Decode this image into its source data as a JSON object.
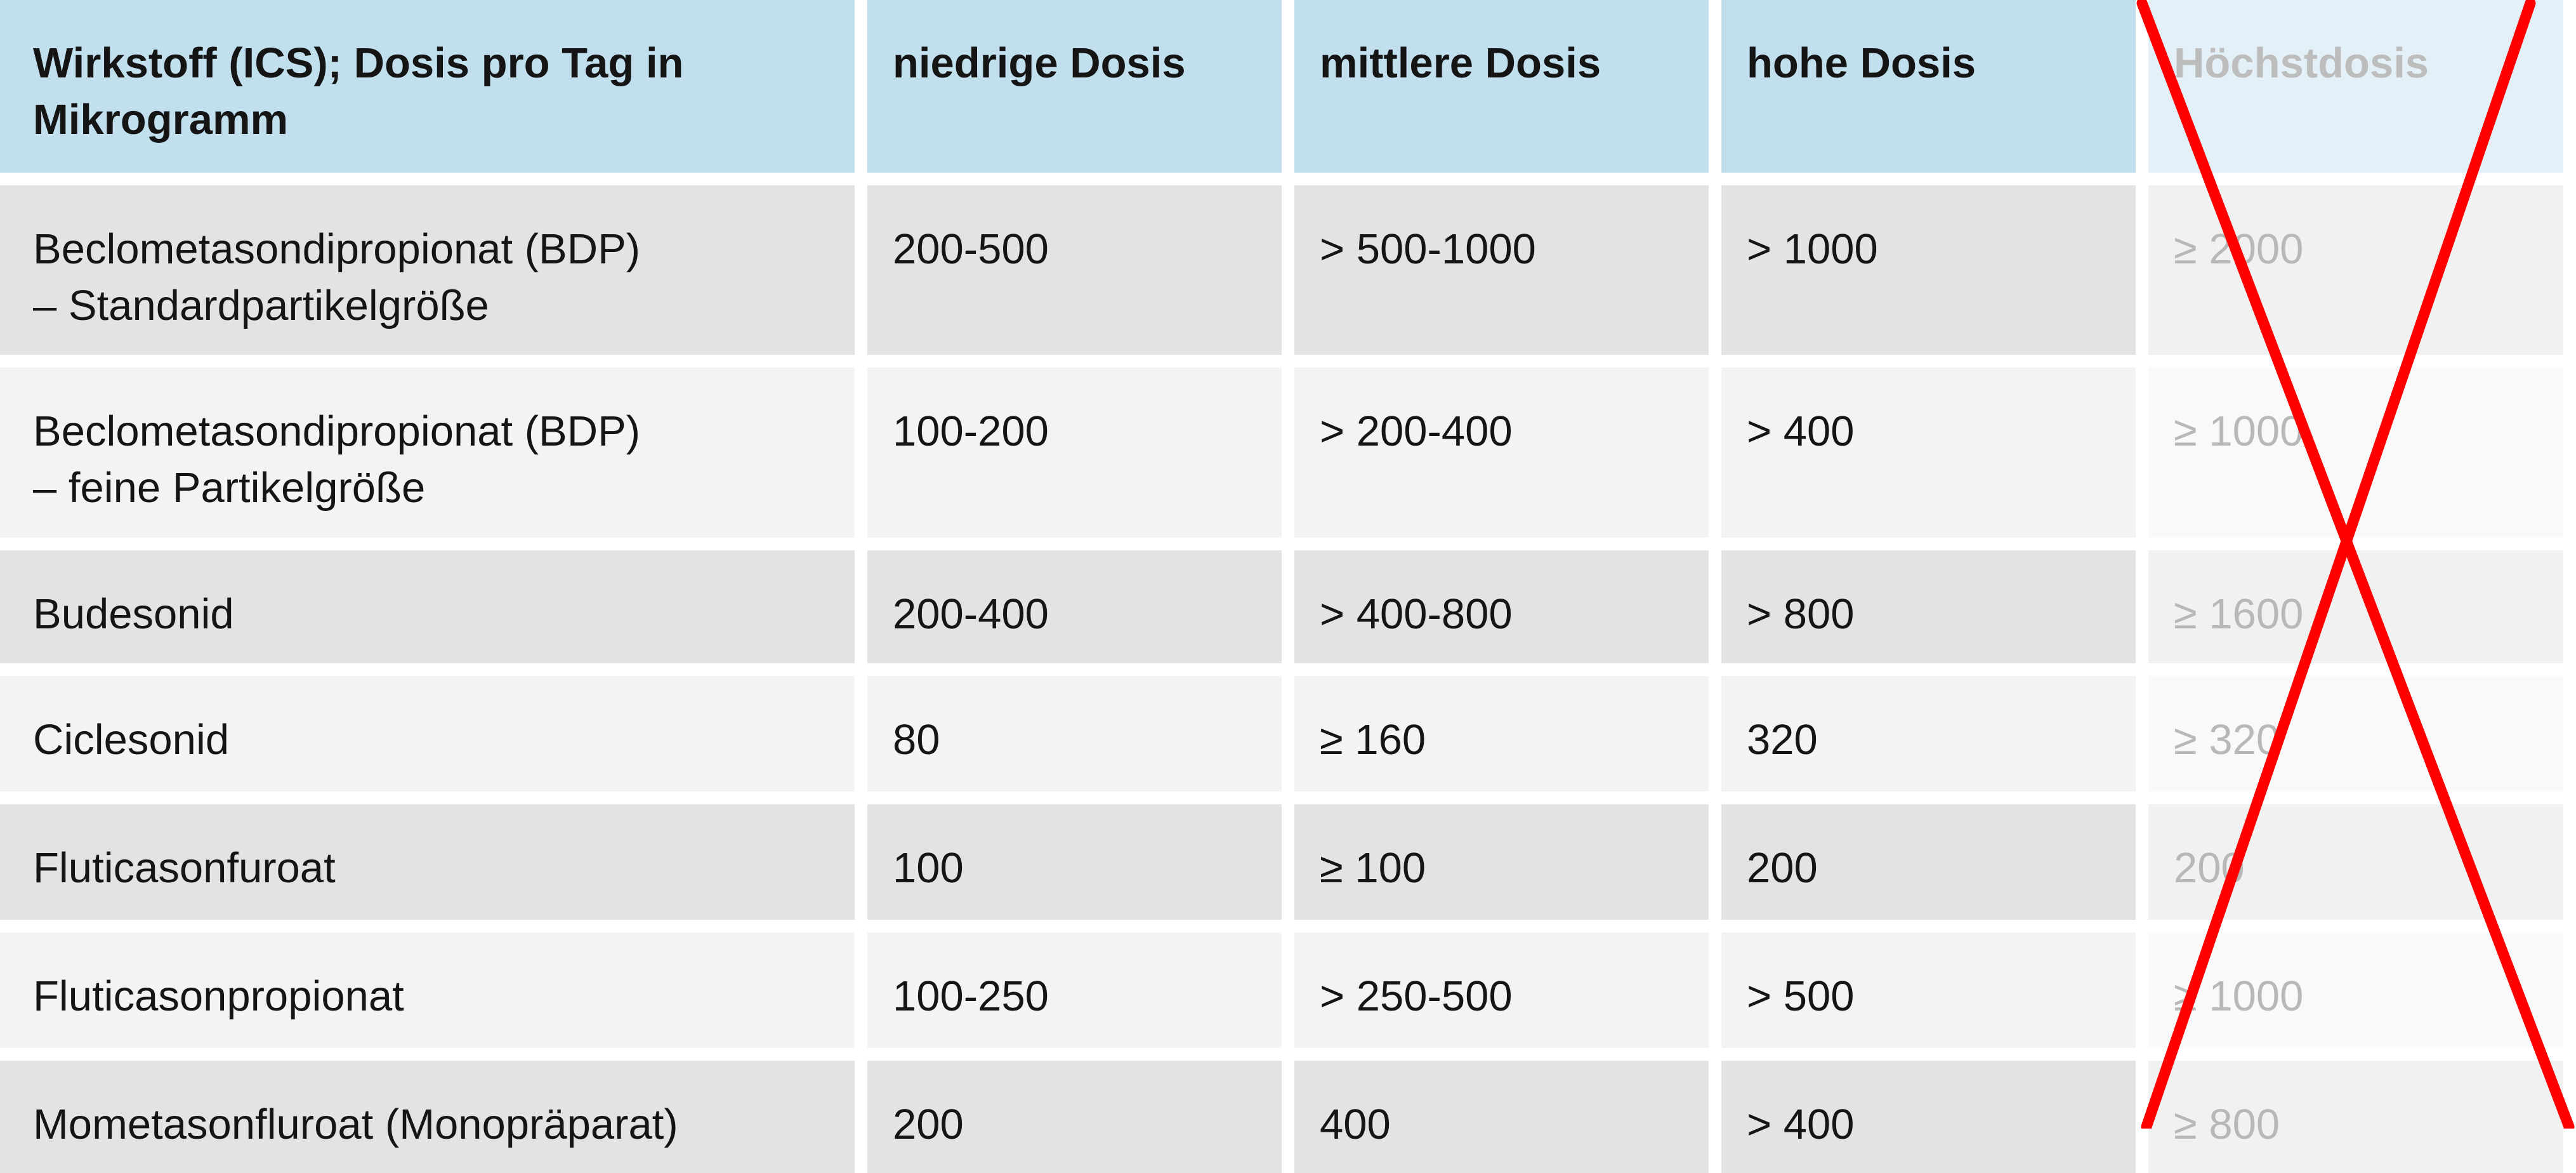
{
  "table": {
    "headers": [
      "Wirkstoff (ICS); Dosis pro Tag in Mikrogramm",
      "niedrige Dosis",
      "mittlere Dosis",
      "hohe Dosis",
      "Höchstdosis"
    ],
    "rows": [
      {
        "name_line1": "Beclometasondipropionat (BDP)",
        "name_line2": "– Standardpartikelgröße",
        "low": "200-500",
        "medium": "> 500-1000",
        "high": "> 1000",
        "max": "≥ 2000"
      },
      {
        "name_line1": "Beclometasondipropionat (BDP)",
        "name_line2": "– feine Partikelgröße",
        "low": "100-200",
        "medium": "> 200-400",
        "high": "> 400",
        "max": "≥ 1000"
      },
      {
        "name_line1": "Budesonid",
        "name_line2": "",
        "low": "200-400",
        "medium": "> 400-800",
        "high": "> 800",
        "max": "≥ 1600"
      },
      {
        "name_line1": "Ciclesonid",
        "name_line2": "",
        "low": "80",
        "medium": "≥ 160",
        "high": "320",
        "max": "≥ 320"
      },
      {
        "name_line1": "Fluticasonfuroat",
        "name_line2": "",
        "low": "100",
        "medium": "≥ 100",
        "high": "200",
        "max": "200"
      },
      {
        "name_line1": "Fluticasonpropionat",
        "name_line2": "",
        "low": "100-250",
        "medium": "> 250-500",
        "high": "> 500",
        "max": "≥ 1000"
      },
      {
        "name_line1": "Mometasonfluroat (Monopräparat)",
        "name_line2": "",
        "low": "200",
        "medium": "400",
        "high": "> 400",
        "max": "≥ 800"
      }
    ]
  },
  "colors": {
    "header_bg": "#c2dfee",
    "header_faded_bg": "#e4f0f7",
    "row_dark_bg": "#e3e3e3",
    "row_light_bg": "#f3f3f3",
    "faded_text": "#b8b8b8",
    "cross_out": "#ff0000"
  },
  "annotation": {
    "cross_out_column": "Höchstdosis",
    "icon": "red-x-cross-out-icon"
  }
}
